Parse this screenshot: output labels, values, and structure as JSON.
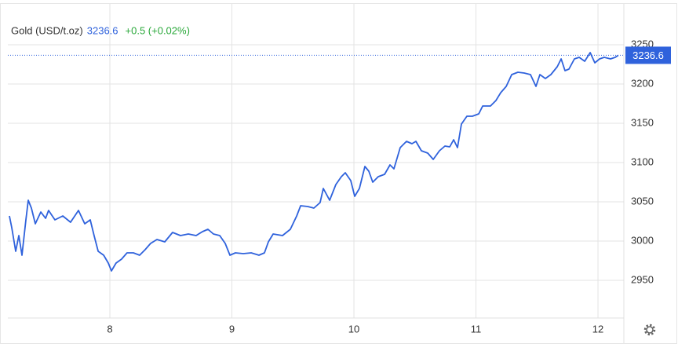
{
  "chart_data": {
    "type": "line",
    "title": "Gold (USD/t.oz)",
    "last_price": 3236.6,
    "change_label": "+0.5 (+0.02%)",
    "change_color": "#2aa83a",
    "x": [
      7.177,
      7.196,
      7.228,
      7.254,
      7.28,
      7.312,
      7.331,
      7.357,
      7.389,
      7.434,
      7.473,
      7.498,
      7.55,
      7.614,
      7.678,
      7.743,
      7.794,
      7.839,
      7.871,
      7.904,
      7.949,
      7.987,
      8.013,
      8.051,
      8.096,
      8.141,
      8.193,
      8.244,
      8.289,
      8.334,
      8.386,
      8.45,
      8.514,
      8.579,
      8.643,
      8.707,
      8.759,
      8.804,
      8.849,
      8.9,
      8.945,
      8.984,
      9.029,
      9.093,
      9.158,
      9.222,
      9.267,
      9.299,
      9.338,
      9.415,
      9.479,
      9.531,
      9.563,
      9.621,
      9.672,
      9.723,
      9.749,
      9.801,
      9.852,
      9.897,
      9.929,
      9.974,
      10.006,
      10.045,
      10.09,
      10.122,
      10.154,
      10.199,
      10.251,
      10.296,
      10.328,
      10.379,
      10.431,
      10.476,
      10.508,
      10.553,
      10.605,
      10.65,
      10.701,
      10.746,
      10.785,
      10.817,
      10.849,
      10.881,
      10.926,
      10.971,
      11.023,
      11.055,
      11.119,
      11.164,
      11.203,
      11.248,
      11.293,
      11.344,
      11.395,
      11.447,
      11.492,
      11.524,
      11.569,
      11.614,
      11.666,
      11.698,
      11.73,
      11.762,
      11.807,
      11.846,
      11.891,
      11.936,
      11.974,
      12.013,
      12.051,
      12.103,
      12.141,
      12.167
    ],
    "series": [
      {
        "color": "#2f62dc",
        "values": [
          3032,
          3017,
          2987,
          3007,
          2982,
          3027,
          3052,
          3042,
          3022,
          3037,
          3029,
          3039,
          3027,
          3032,
          3024,
          3039,
          3022,
          3027,
          3007,
          2987,
          2982,
          2972,
          2962,
          2972,
          2977,
          2985,
          2985,
          2982,
          2989,
          2997,
          3002,
          2999,
          3011,
          3007,
          3009,
          3007,
          3012,
          3015,
          3009,
          3007,
          2997,
          2982,
          2985,
          2984,
          2985,
          2982,
          2985,
          2999,
          3009,
          3007,
          3015,
          3032,
          3045,
          3044,
          3042,
          3049,
          3067,
          3052,
          3072,
          3082,
          3087,
          3077,
          3057,
          3067,
          3095,
          3089,
          3075,
          3082,
          3085,
          3097,
          3092,
          3119,
          3127,
          3124,
          3127,
          3115,
          3112,
          3104,
          3115,
          3121,
          3120,
          3129,
          3119,
          3149,
          3159,
          3159,
          3162,
          3172,
          3172,
          3179,
          3189,
          3197,
          3212,
          3215,
          3214,
          3212,
          3197,
          3212,
          3207,
          3212,
          3222,
          3232,
          3217,
          3219,
          3232,
          3234,
          3229,
          3240,
          3227,
          3232,
          3234,
          3232,
          3234,
          3236.6
        ]
      }
    ],
    "xlim": [
      7.164,
      12.212
    ],
    "xticks": [
      8,
      9,
      10,
      11,
      12
    ],
    "ylim": [
      2902,
      3302
    ],
    "yticks": [
      2950,
      3000,
      3050,
      3100,
      3150,
      3200,
      3250
    ],
    "grid": true
  }
}
